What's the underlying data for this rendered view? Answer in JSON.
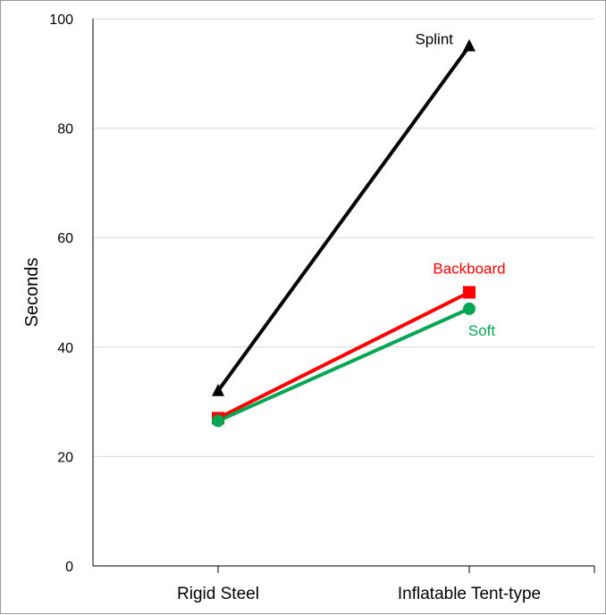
{
  "chart_data": {
    "type": "line",
    "categories": [
      "Rigid Steel",
      "Inflatable Tent-type"
    ],
    "ylabel": "Seconds",
    "xlabel": "",
    "title": "",
    "ylim": [
      0,
      100
    ],
    "yticks": [
      0,
      20,
      40,
      60,
      80,
      100
    ],
    "grid": true,
    "legend": "none (inline series labels at right end of each line)",
    "series": [
      {
        "name": "Splint",
        "values": [
          32,
          95
        ],
        "color": "#000000",
        "marker": "triangle"
      },
      {
        "name": "Backboard",
        "values": [
          27,
          50
        ],
        "color": "#ff0000",
        "marker": "square"
      },
      {
        "name": "Soft",
        "values": [
          26.5,
          47
        ],
        "color": "#00a651",
        "marker": "circle"
      }
    ]
  }
}
